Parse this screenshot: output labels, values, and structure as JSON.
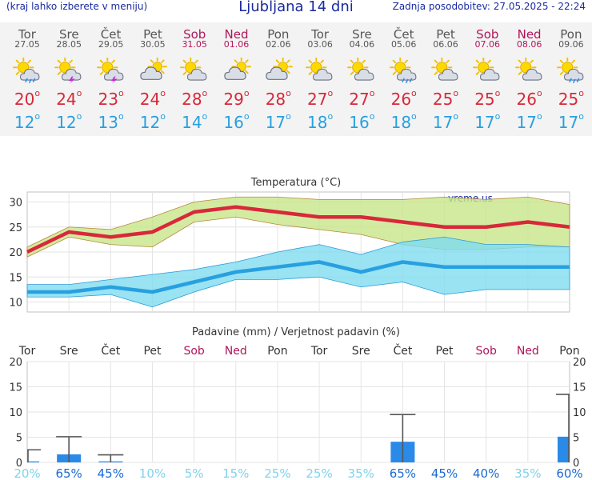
{
  "header": {
    "menu_note": "(kraj lahko izberete v meniju)",
    "title": "Ljubljana 14 dni",
    "updated": "Zadnja posodobitev: 27.05.2025 - 22:24"
  },
  "colors": {
    "accent": "#1a2aa0",
    "weekend": "#b0155a",
    "max_temp": "#d8283a",
    "min_temp": "#28a0e0",
    "max_band": "#c8e68a",
    "min_band": "#7fdcf0",
    "precip_bar": "#2a8ae8"
  },
  "days": [
    {
      "name": "Tor",
      "date": "27.05",
      "weekend": false,
      "icon": "sun-cloud-rain-icon",
      "tmax": "20",
      "tmin": "12"
    },
    {
      "name": "Sre",
      "date": "28.05",
      "weekend": false,
      "icon": "sun-cloud-thunder-icon",
      "tmax": "24",
      "tmin": "12"
    },
    {
      "name": "Čet",
      "date": "29.05",
      "weekend": false,
      "icon": "sun-cloud-thunder-icon",
      "tmax": "23",
      "tmin": "13"
    },
    {
      "name": "Pet",
      "date": "30.05",
      "weekend": false,
      "icon": "cloud-sun-icon",
      "tmax": "24",
      "tmin": "12"
    },
    {
      "name": "Sob",
      "date": "31.05",
      "weekend": true,
      "icon": "sun-cloud-icon",
      "tmax": "28",
      "tmin": "14"
    },
    {
      "name": "Ned",
      "date": "01.06",
      "weekend": true,
      "icon": "cloud-sun-icon",
      "tmax": "29",
      "tmin": "16"
    },
    {
      "name": "Pon",
      "date": "02.06",
      "weekend": false,
      "icon": "cloud-sun-icon",
      "tmax": "28",
      "tmin": "17"
    },
    {
      "name": "Tor",
      "date": "03.06",
      "weekend": false,
      "icon": "sun-cloud-icon",
      "tmax": "27",
      "tmin": "18"
    },
    {
      "name": "Sre",
      "date": "04.06",
      "weekend": false,
      "icon": "sun-cloud-icon",
      "tmax": "27",
      "tmin": "16"
    },
    {
      "name": "Čet",
      "date": "05.06",
      "weekend": false,
      "icon": "sun-cloud-rain-icon",
      "tmax": "26",
      "tmin": "18"
    },
    {
      "name": "Pet",
      "date": "06.06",
      "weekend": false,
      "icon": "sun-cloud-icon",
      "tmax": "25",
      "tmin": "17"
    },
    {
      "name": "Sob",
      "date": "07.06",
      "weekend": true,
      "icon": "sun-cloud-icon",
      "tmax": "25",
      "tmin": "17"
    },
    {
      "name": "Ned",
      "date": "08.06",
      "weekend": true,
      "icon": "sun-cloud-icon",
      "tmax": "26",
      "tmin": "17"
    },
    {
      "name": "Pon",
      "date": "09.06",
      "weekend": false,
      "icon": "sun-cloud-rain-icon",
      "tmax": "25",
      "tmin": "17"
    }
  ],
  "chart_data": [
    {
      "type": "line",
      "title": "Temperatura (°C)",
      "watermark": "vreme.us",
      "x": [
        "27.05",
        "28.05",
        "29.05",
        "30.05",
        "31.05",
        "01.06",
        "02.06",
        "03.06",
        "04.06",
        "05.06",
        "06.06",
        "07.06",
        "08.06",
        "09.06"
      ],
      "ylim": [
        8,
        32
      ],
      "yticks": [
        10,
        15,
        20,
        25,
        30
      ],
      "grid": true,
      "series": [
        {
          "name": "Maks. temperatura",
          "values": [
            20,
            24,
            23,
            24,
            28,
            29,
            28,
            27,
            27,
            26,
            25,
            25,
            26,
            25
          ],
          "range_low": [
            19,
            23,
            21.5,
            21,
            26,
            27,
            25.5,
            24.5,
            23.5,
            21.5,
            20.5,
            20.5,
            21,
            21
          ],
          "range_high": [
            21,
            25,
            24.5,
            27,
            30,
            31,
            31,
            30.5,
            30.5,
            30.5,
            31,
            30.5,
            31,
            29.5
          ]
        },
        {
          "name": "Min. temperatura",
          "values": [
            12,
            12,
            13,
            12,
            14,
            16,
            17,
            18,
            16,
            18,
            17,
            17,
            17,
            17
          ],
          "range_low": [
            11,
            11,
            11.5,
            9,
            12,
            14.5,
            14.5,
            15,
            13,
            14,
            11.5,
            12.5,
            12.5,
            12.5
          ],
          "range_high": [
            13.5,
            13.5,
            14.5,
            15.5,
            16.5,
            18,
            20,
            21.5,
            19.5,
            22,
            23,
            21.5,
            21.5,
            21
          ]
        }
      ]
    },
    {
      "type": "bar",
      "title": "Padavine (mm) / Verjetnost padavin (%)",
      "categories": [
        "Tor",
        "Sre",
        "Čet",
        "Pet",
        "Sob",
        "Ned",
        "Pon",
        "Tor",
        "Sre",
        "Čet",
        "Pet",
        "Sob",
        "Ned",
        "Pon"
      ],
      "weekend": [
        false,
        false,
        false,
        false,
        true,
        true,
        false,
        false,
        false,
        false,
        false,
        true,
        true,
        false
      ],
      "values": [
        0.2,
        1.6,
        0.2,
        0,
        0,
        0,
        0,
        0,
        0,
        4.1,
        0,
        0,
        0,
        5.1
      ],
      "error_high": [
        2.5,
        5.1,
        1.5,
        0,
        0,
        0,
        0,
        0,
        0,
        9.5,
        0,
        0,
        0,
        13.5
      ],
      "probability": [
        "20%",
        "65%",
        "45%",
        "10%",
        "5%",
        "15%",
        "25%",
        "25%",
        "35%",
        "65%",
        "45%",
        "40%",
        "35%",
        "60%"
      ],
      "ylim": [
        0,
        20
      ],
      "yticks": [
        0,
        5,
        10,
        15,
        20
      ],
      "grid": true
    }
  ]
}
